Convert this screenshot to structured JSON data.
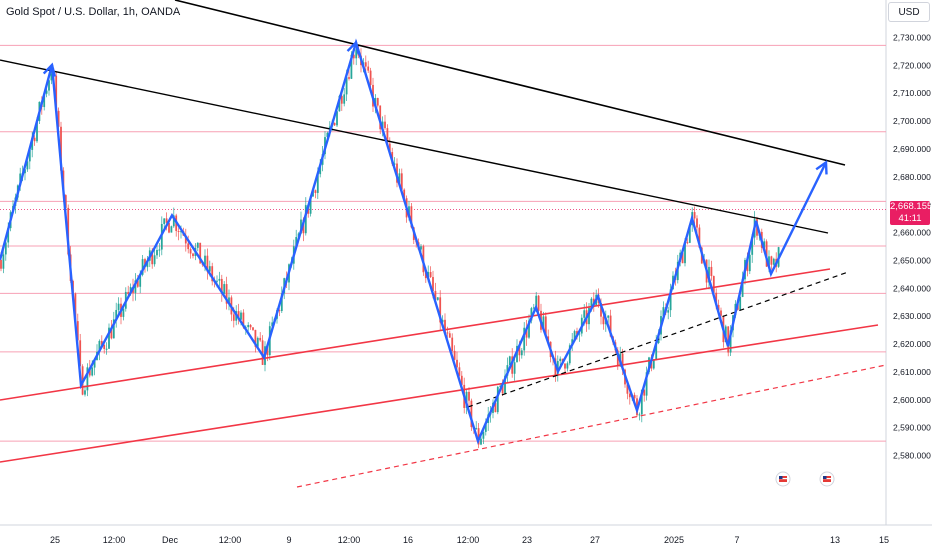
{
  "header": {
    "symbol_title": "Gold Spot / U.S. Dollar, 1h, OANDA",
    "currency_button": "USD"
  },
  "price_tag": {
    "price": "2,668.155",
    "countdown": "41:11"
  },
  "colors": {
    "up": "#26a69a",
    "down": "#ef5350",
    "zigzag": "#2962ff",
    "resistance": "#000000",
    "channel": "#f23645",
    "level": "#f7a0b4",
    "tag": "#e91e63"
  },
  "chart_data": {
    "type": "candlestick",
    "x_tick_labels": [
      "25",
      "12:00",
      "Dec",
      "12:00",
      "9",
      "12:00",
      "16",
      "12:00",
      "23",
      "27",
      "2025",
      "7",
      "13",
      "15"
    ],
    "y_tick_labels": [
      "2,730.000",
      "2,720.000",
      "2,710.000",
      "2,700.000",
      "2,690.000",
      "2,680.000",
      "2,670.000",
      "2,660.000",
      "2,650.000",
      "2,640.000",
      "2,630.000",
      "2,620.000",
      "2,610.000",
      "2,600.000",
      "2,590.000",
      "2,580.000"
    ],
    "ylim": [
      2575,
      2735
    ],
    "horizontal_levels": [
      2727,
      2696,
      2671,
      2655,
      2638,
      2617,
      2585
    ],
    "zigzag_path": [
      [
        0,
        2650
      ],
      [
        52,
        2720
      ],
      [
        81,
        2605
      ],
      [
        172,
        2666
      ],
      [
        264,
        2615
      ],
      [
        356,
        2728
      ],
      [
        478,
        2585
      ],
      [
        536,
        2633
      ],
      [
        558,
        2610
      ],
      [
        598,
        2637
      ],
      [
        637,
        2596
      ],
      [
        692,
        2665
      ],
      [
        728,
        2619
      ],
      [
        756,
        2664
      ],
      [
        771,
        2645
      ],
      [
        826,
        2685
      ]
    ],
    "current_price": 2668.155,
    "countdown": "41:11"
  }
}
